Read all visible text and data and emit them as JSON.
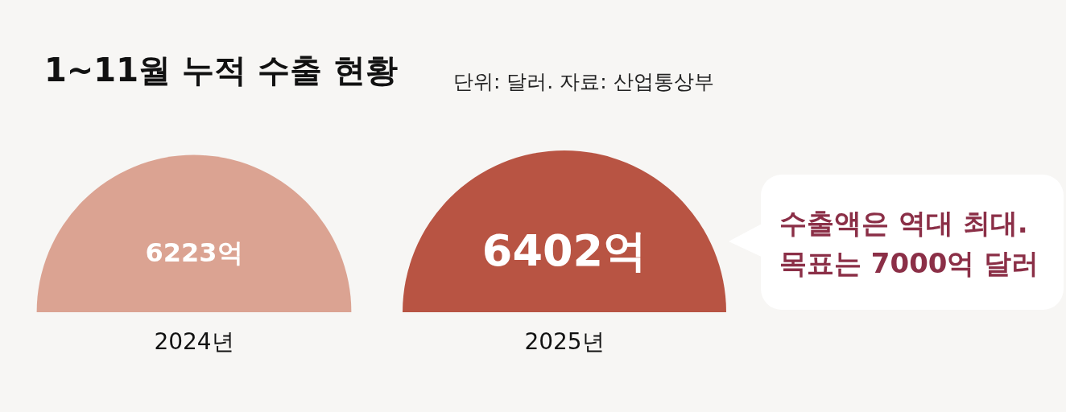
{
  "chart_data": {
    "type": "other",
    "title": "1~11월 누적 수출 현황",
    "subtitle": "단위: 달러. 자료: 산업통상부",
    "categories": [
      "2024년",
      "2025년"
    ],
    "values": [
      6223,
      6402
    ],
    "value_labels": [
      "6223억",
      "6402억"
    ],
    "colors": [
      "#dba392",
      "#b85443"
    ],
    "annotations": [
      "수출액은 역대 최대.\n목표는 7000억 달러"
    ]
  }
}
